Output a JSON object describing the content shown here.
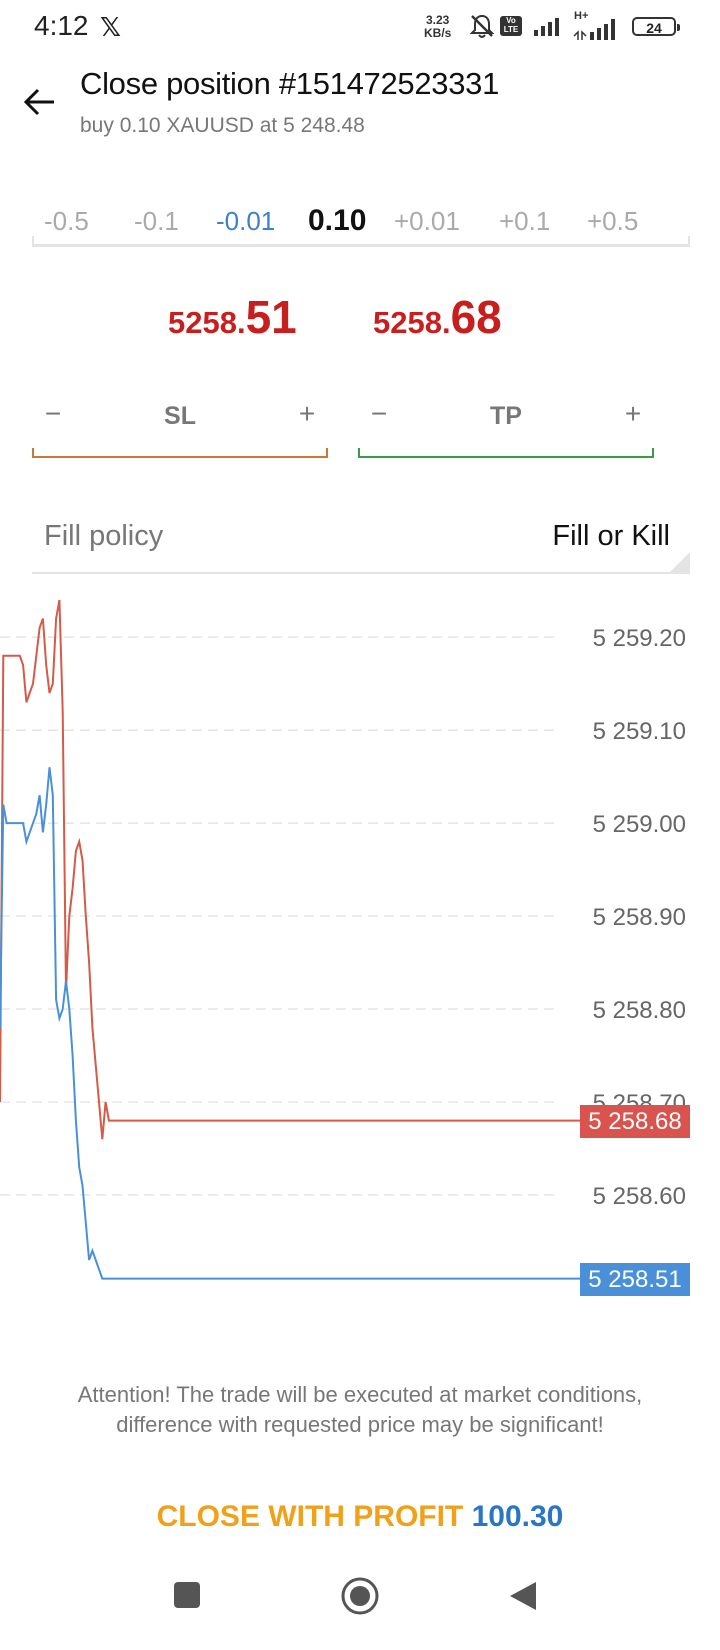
{
  "status_bar": {
    "time": "4:12",
    "x_app": "𝕏",
    "net_speed_value": "3.23",
    "net_speed_unit": "KB/s",
    "volte_line1": "Vo",
    "volte_line2": "LTE",
    "network_type": "H+",
    "battery": "24"
  },
  "header": {
    "title": "Close position #151472523331",
    "subtitle": "buy 0.10 XAUUSD at 5 248.48"
  },
  "volume": {
    "steps": [
      "-0.5",
      "-0.1",
      "-0.01",
      "0.10",
      "+0.01",
      "+0.1",
      "+0.5"
    ],
    "current": "0.10"
  },
  "prices": {
    "bid_small": "5258.",
    "bid_big": "51",
    "ask_small": "5258.",
    "ask_big": "68"
  },
  "sl": {
    "label": "SL",
    "minus": "−",
    "plus": "+"
  },
  "tp": {
    "label": "TP",
    "minus": "−",
    "plus": "+"
  },
  "fill_policy": {
    "label": "Fill policy",
    "value": "Fill or Kill"
  },
  "chart_data": {
    "type": "line",
    "y_ticks": [
      "5 259.20",
      "5 259.10",
      "5 259.00",
      "5 258.90",
      "5 258.80",
      "5 258.70",
      "5 258.60"
    ],
    "ylim": [
      5258.53,
      5259.24
    ],
    "grid": true,
    "series": [
      {
        "color": "#d45a4a",
        "values": [
          5258.7,
          5259.18,
          5259.18,
          5259.18,
          5259.18,
          5259.18,
          5259.18,
          5259.17,
          5259.13,
          5259.14,
          5259.15,
          5259.18,
          5259.21,
          5259.22,
          5259.17,
          5259.14,
          5259.15,
          5259.22,
          5259.24,
          5259.12,
          5258.82,
          5258.9,
          5258.93,
          5258.97,
          5258.98,
          5258.96,
          5258.9,
          5258.85,
          5258.78,
          5258.74,
          5258.7,
          5258.66,
          5258.7,
          5258.68,
          5258.68,
          5258.68,
          5258.68,
          5258.68,
          5258.68,
          5258.68
        ]
      },
      {
        "color": "#4a90d9",
        "values": [
          5258.78,
          5259.02,
          5259.0,
          5259.0,
          5259.0,
          5259.0,
          5259.0,
          5259.0,
          5258.98,
          5258.99,
          5259.0,
          5259.01,
          5259.03,
          5258.99,
          5259.02,
          5259.06,
          5259.03,
          5258.81,
          5258.79,
          5258.8,
          5258.83,
          5258.8,
          5258.75,
          5258.68,
          5258.63,
          5258.61,
          5258.57,
          5258.53,
          5258.54,
          5258.53,
          5258.52,
          5258.51,
          5258.51,
          5258.51,
          5258.51,
          5258.51,
          5258.51,
          5258.51,
          5258.51,
          5258.51
        ]
      }
    ],
    "current_ask": "5 258.68",
    "current_bid": "5 258.51"
  },
  "notice": "Attention! The trade will be executed at market conditions, difference with requested price may be significant!",
  "close_button": {
    "label": "CLOSE WITH PROFIT",
    "amount": "100.30"
  },
  "colors": {
    "price_red": "#c81e1e",
    "ask_tag": "#d9534f",
    "bid_tag": "#4a90d9",
    "sl_line": "#c9793a",
    "tp_line": "#3d9a4b",
    "close_label": "#f0a019",
    "close_amount": "#2a76c6"
  },
  "nav_icons": [
    "recent-apps-icon",
    "home-icon",
    "back-icon"
  ]
}
